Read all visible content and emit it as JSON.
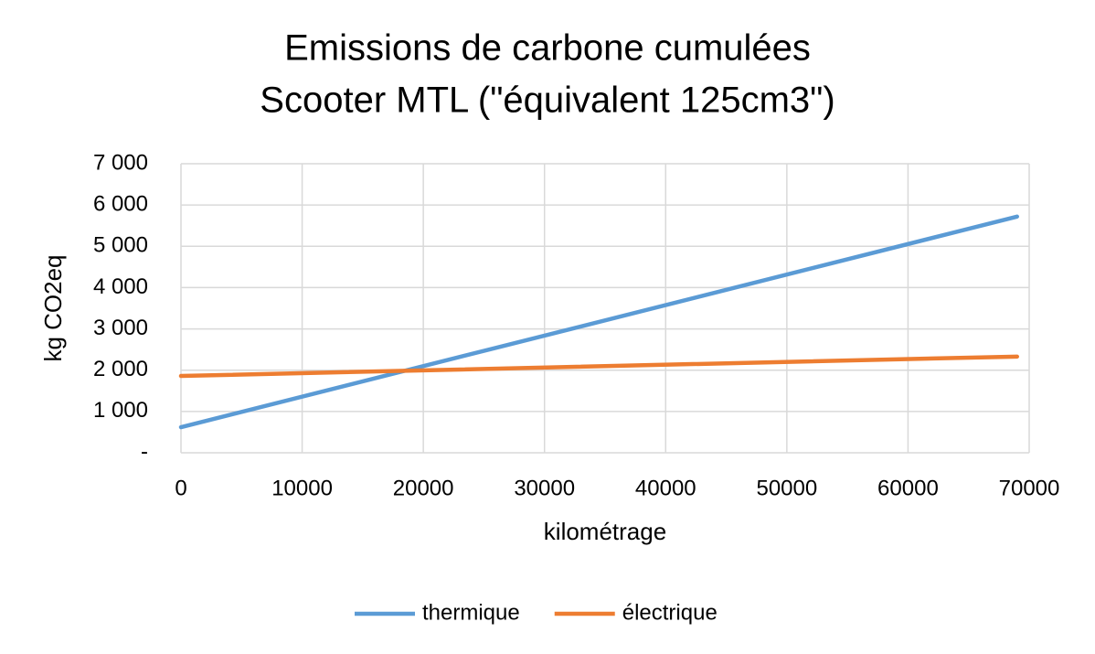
{
  "chart_data": {
    "type": "line",
    "title": "Emissions de carbone cumulées",
    "subtitle": "Scooter MTL (\"équivalent 125cm3\")",
    "x_label": "kilométrage",
    "y_label": "kg CO2eq",
    "x": [
      0,
      69000
    ],
    "series": [
      {
        "name": "thermique",
        "color": "#5b9bd5",
        "values": [
          620,
          5720
        ]
      },
      {
        "name": "électrique",
        "color": "#ed7d31",
        "values": [
          1860,
          2330
        ]
      }
    ],
    "xlim": [
      0,
      70000
    ],
    "xticks": [
      0,
      10000,
      20000,
      30000,
      40000,
      50000,
      60000,
      70000
    ],
    "ylim": [
      0,
      7000
    ],
    "yticks": [
      {
        "value": 0,
        "label": "-"
      },
      {
        "value": 1000,
        "label": "1 000"
      },
      {
        "value": 2000,
        "label": "2 000"
      },
      {
        "value": 3000,
        "label": "3 000"
      },
      {
        "value": 4000,
        "label": "4 000"
      },
      {
        "value": 5000,
        "label": "5 000"
      },
      {
        "value": 6000,
        "label": "6 000"
      },
      {
        "value": 7000,
        "label": "7 000"
      }
    ],
    "grid": true,
    "legend": "bottom"
  }
}
